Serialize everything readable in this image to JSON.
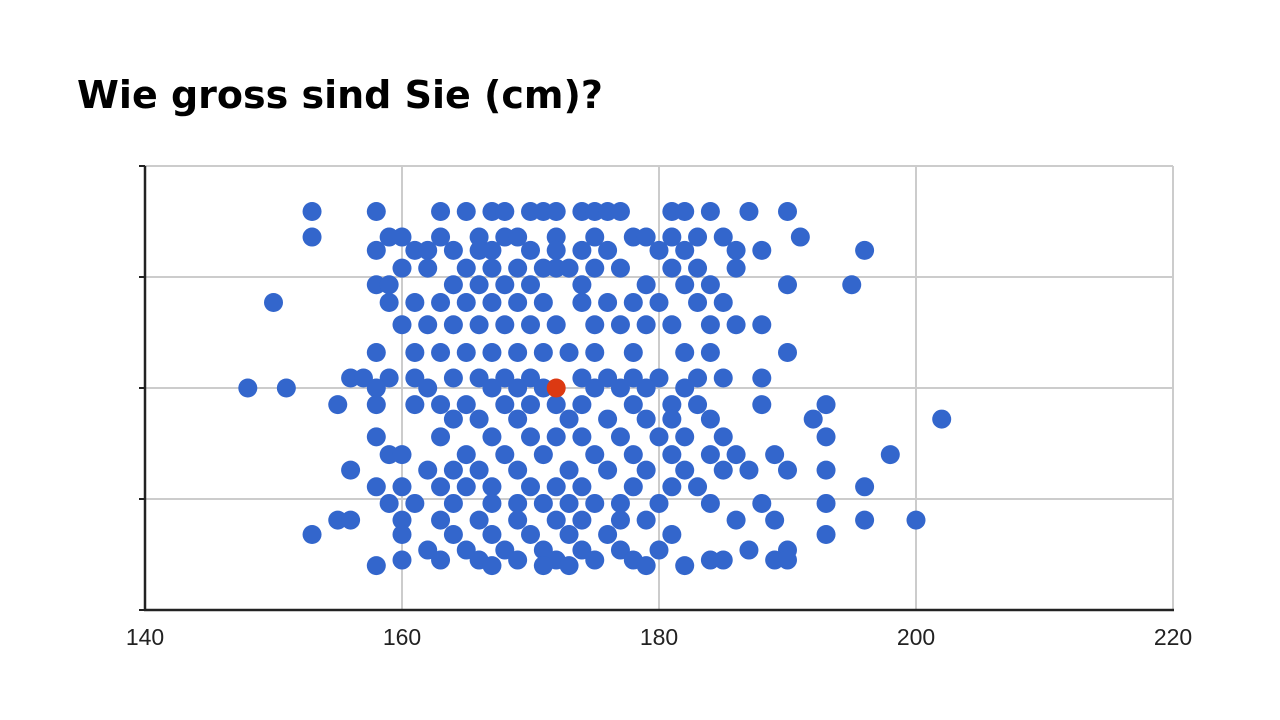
{
  "chart_data": {
    "type": "scatter",
    "title": "Wie gross sind Sie (cm)?",
    "xlim": [
      140,
      220
    ],
    "xticks": [
      140,
      160,
      180,
      200,
      220
    ],
    "ylim": [
      0,
      4
    ],
    "yticks": [
      0,
      1,
      2,
      3,
      4
    ],
    "show_ytick_labels": false,
    "grid": true,
    "series": [
      {
        "color": "#3366cc",
        "x": [
          153,
          158,
          163,
          165,
          167,
          168,
          170,
          171,
          172,
          174,
          175,
          176,
          177,
          181,
          182,
          184,
          187,
          190,
          153,
          159,
          160,
          163,
          166,
          168,
          169,
          172,
          175,
          178,
          179,
          181,
          183,
          185,
          191,
          158,
          161,
          162,
          164,
          166,
          167,
          170,
          172,
          174,
          176,
          180,
          182,
          186,
          188,
          196,
          160,
          162,
          165,
          167,
          169,
          171,
          172,
          173,
          175,
          177,
          181,
          183,
          186,
          158,
          159,
          164,
          166,
          168,
          170,
          174,
          179,
          182,
          184,
          190,
          195,
          150,
          159,
          161,
          163,
          165,
          167,
          169,
          171,
          174,
          176,
          178,
          180,
          183,
          185,
          160,
          162,
          164,
          166,
          168,
          170,
          172,
          175,
          177,
          179,
          181,
          184,
          186,
          188,
          158,
          161,
          163,
          165,
          167,
          169,
          171,
          173,
          175,
          178,
          182,
          184,
          190,
          156,
          157,
          159,
          161,
          164,
          166,
          168,
          170,
          174,
          176,
          178,
          180,
          183,
          185,
          188,
          148,
          151,
          158,
          162,
          167,
          169,
          171,
          175,
          177,
          179,
          182,
          155,
          158,
          161,
          163,
          165,
          168,
          170,
          172,
          174,
          178,
          181,
          183,
          188,
          193,
          164,
          166,
          169,
          173,
          176,
          179,
          181,
          184,
          192,
          202,
          158,
          163,
          167,
          170,
          172,
          174,
          177,
          180,
          182,
          185,
          193,
          159,
          160,
          165,
          168,
          171,
          175,
          178,
          181,
          184,
          186,
          189,
          198,
          156,
          162,
          164,
          166,
          169,
          173,
          176,
          179,
          182,
          185,
          187,
          190,
          193,
          158,
          160,
          163,
          165,
          167,
          170,
          172,
          174,
          178,
          181,
          183,
          196,
          159,
          161,
          164,
          167,
          169,
          171,
          173,
          175,
          177,
          180,
          184,
          188,
          193,
          155,
          156,
          160,
          163,
          166,
          169,
          172,
          174,
          177,
          179,
          186,
          189,
          196,
          200,
          153,
          160,
          164,
          167,
          170,
          173,
          176,
          181,
          193,
          162,
          165,
          168,
          171,
          174,
          177,
          180,
          187,
          190,
          160,
          163,
          166,
          169,
          172,
          175,
          178,
          184,
          185,
          189,
          190,
          158,
          167,
          171,
          173,
          179,
          182
        ],
        "values": [
          3.59,
          3.59,
          3.59,
          3.59,
          3.59,
          3.59,
          3.59,
          3.59,
          3.59,
          3.59,
          3.59,
          3.59,
          3.59,
          3.59,
          3.59,
          3.59,
          3.59,
          3.59,
          3.36,
          3.36,
          3.36,
          3.36,
          3.36,
          3.36,
          3.36,
          3.36,
          3.36,
          3.36,
          3.36,
          3.36,
          3.36,
          3.36,
          3.36,
          3.24,
          3.24,
          3.24,
          3.24,
          3.24,
          3.24,
          3.24,
          3.24,
          3.24,
          3.24,
          3.24,
          3.24,
          3.24,
          3.24,
          3.24,
          3.08,
          3.08,
          3.08,
          3.08,
          3.08,
          3.08,
          3.08,
          3.08,
          3.08,
          3.08,
          3.08,
          3.08,
          3.08,
          2.93,
          2.93,
          2.93,
          2.93,
          2.93,
          2.93,
          2.93,
          2.93,
          2.93,
          2.93,
          2.93,
          2.93,
          2.77,
          2.77,
          2.77,
          2.77,
          2.77,
          2.77,
          2.77,
          2.77,
          2.77,
          2.77,
          2.77,
          2.77,
          2.77,
          2.77,
          2.57,
          2.57,
          2.57,
          2.57,
          2.57,
          2.57,
          2.57,
          2.57,
          2.57,
          2.57,
          2.57,
          2.57,
          2.57,
          2.57,
          2.32,
          2.32,
          2.32,
          2.32,
          2.32,
          2.32,
          2.32,
          2.32,
          2.32,
          2.32,
          2.32,
          2.32,
          2.32,
          2.09,
          2.09,
          2.09,
          2.09,
          2.09,
          2.09,
          2.09,
          2.09,
          2.09,
          2.09,
          2.09,
          2.09,
          2.09,
          2.09,
          2.09,
          2.0,
          2.0,
          2.0,
          2.0,
          2.0,
          2.0,
          2.0,
          2.0,
          2.0,
          2.0,
          2.0,
          1.85,
          1.85,
          1.85,
          1.85,
          1.85,
          1.85,
          1.85,
          1.85,
          1.85,
          1.85,
          1.85,
          1.85,
          1.85,
          1.85,
          1.72,
          1.72,
          1.72,
          1.72,
          1.72,
          1.72,
          1.72,
          1.72,
          1.72,
          1.72,
          1.56,
          1.56,
          1.56,
          1.56,
          1.56,
          1.56,
          1.56,
          1.56,
          1.56,
          1.56,
          1.56,
          1.4,
          1.4,
          1.4,
          1.4,
          1.4,
          1.4,
          1.4,
          1.4,
          1.4,
          1.4,
          1.4,
          1.4,
          1.26,
          1.26,
          1.26,
          1.26,
          1.26,
          1.26,
          1.26,
          1.26,
          1.26,
          1.26,
          1.26,
          1.26,
          1.26,
          1.11,
          1.11,
          1.11,
          1.11,
          1.11,
          1.11,
          1.11,
          1.11,
          1.11,
          1.11,
          1.11,
          1.11,
          0.96,
          0.96,
          0.96,
          0.96,
          0.96,
          0.96,
          0.96,
          0.96,
          0.96,
          0.96,
          0.96,
          0.96,
          0.96,
          0.81,
          0.81,
          0.81,
          0.81,
          0.81,
          0.81,
          0.81,
          0.81,
          0.81,
          0.81,
          0.81,
          0.81,
          0.81,
          0.81,
          0.68,
          0.68,
          0.68,
          0.68,
          0.68,
          0.68,
          0.68,
          0.68,
          0.68,
          0.54,
          0.54,
          0.54,
          0.54,
          0.54,
          0.54,
          0.54,
          0.54,
          0.54,
          0.45,
          0.45,
          0.45,
          0.45,
          0.45,
          0.45,
          0.45,
          0.45,
          0.45,
          0.45,
          0.45,
          0.4,
          0.4,
          0.4,
          0.4,
          0.4,
          0.4
        ]
      },
      {
        "color": "#dc3912",
        "x": [
          172
        ],
        "values": [
          2.0
        ]
      }
    ]
  }
}
